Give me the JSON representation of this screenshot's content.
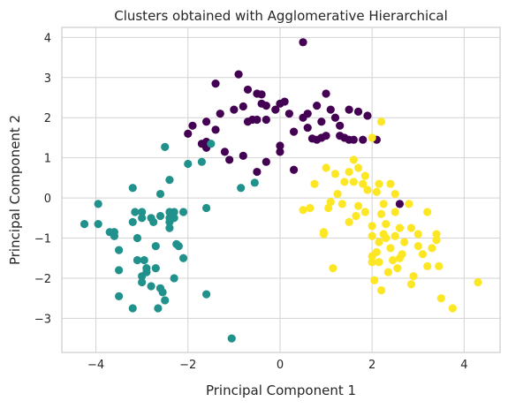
{
  "chart_data": {
    "type": "scatter",
    "title": "Clusters obtained with Agglomerative Hierarchical",
    "xlabel": "Principal Component 1",
    "ylabel": "Principal Component 2",
    "xlim": [
      -4.74,
      4.78
    ],
    "ylim": [
      -3.85,
      4.25
    ],
    "xticks": [
      -4,
      -2,
      0,
      2,
      4
    ],
    "yticks": [
      -3,
      -2,
      -1,
      0,
      1,
      2,
      3,
      4
    ],
    "xtick_labels": [
      "−4",
      "−2",
      "0",
      "2",
      "4"
    ],
    "ytick_labels": [
      "−3",
      "−2",
      "−1",
      "0",
      "1",
      "2",
      "3",
      "4"
    ],
    "grid": true,
    "colors": {
      "0": "#440154",
      "1": "#21918c",
      "2": "#fde725"
    },
    "series": [
      {
        "color": "#440154",
        "points": [
          [
            0.5,
            3.88
          ],
          [
            -0.9,
            3.08
          ],
          [
            -1.4,
            2.85
          ],
          [
            -0.7,
            2.7
          ],
          [
            -0.5,
            2.6
          ],
          [
            -0.4,
            2.58
          ],
          [
            -0.3,
            2.3
          ],
          [
            -0.4,
            2.35
          ],
          [
            -1.0,
            2.2
          ],
          [
            -0.8,
            2.28
          ],
          [
            -0.1,
            2.2
          ],
          [
            0.1,
            2.4
          ],
          [
            0.2,
            2.1
          ],
          [
            0.5,
            2.0
          ],
          [
            1.0,
            2.6
          ],
          [
            0.8,
            2.3
          ],
          [
            1.1,
            2.2
          ],
          [
            0.6,
            2.1
          ],
          [
            -1.3,
            2.1
          ],
          [
            -1.6,
            1.9
          ],
          [
            -1.9,
            1.8
          ],
          [
            -2.0,
            1.6
          ],
          [
            -1.4,
            1.7
          ],
          [
            -0.6,
            1.95
          ],
          [
            -0.5,
            1.95
          ],
          [
            -0.7,
            1.9
          ],
          [
            -0.3,
            1.95
          ],
          [
            0.0,
            2.35
          ],
          [
            0.3,
            1.65
          ],
          [
            0.6,
            1.75
          ],
          [
            0.9,
            1.9
          ],
          [
            1.2,
            2.0
          ],
          [
            1.3,
            1.8
          ],
          [
            1.5,
            2.2
          ],
          [
            1.7,
            2.15
          ],
          [
            1.9,
            2.05
          ],
          [
            1.0,
            1.55
          ],
          [
            1.3,
            1.55
          ],
          [
            1.5,
            1.45
          ],
          [
            1.6,
            1.45
          ],
          [
            1.8,
            1.45
          ],
          [
            0.8,
            1.45
          ],
          [
            0.9,
            1.5
          ],
          [
            0.7,
            1.48
          ],
          [
            2.1,
            1.45
          ],
          [
            -1.6,
            1.4
          ],
          [
            -1.7,
            1.35
          ],
          [
            -1.2,
            1.15
          ],
          [
            -1.1,
            0.95
          ],
          [
            -0.8,
            1.05
          ],
          [
            -0.5,
            0.65
          ],
          [
            -0.3,
            0.9
          ],
          [
            0.0,
            1.15
          ],
          [
            0.0,
            1.3
          ],
          [
            0.3,
            0.7
          ],
          [
            1.4,
            1.5
          ],
          [
            -1.6,
            1.25
          ],
          [
            2.6,
            -0.15
          ]
        ]
      },
      {
        "color": "#21918c",
        "points": [
          [
            -1.05,
            -3.5
          ],
          [
            -3.2,
            -2.75
          ],
          [
            -2.65,
            -2.75
          ],
          [
            -2.5,
            -2.55
          ],
          [
            -3.5,
            -2.45
          ],
          [
            -2.8,
            -2.2
          ],
          [
            -3.0,
            -2.1
          ],
          [
            -2.55,
            -2.35
          ],
          [
            -1.6,
            -2.4
          ],
          [
            -2.6,
            -2.25
          ],
          [
            -2.9,
            -1.85
          ],
          [
            -3.0,
            -1.95
          ],
          [
            -2.9,
            -1.75
          ],
          [
            -2.7,
            -1.75
          ],
          [
            -2.3,
            -2.0
          ],
          [
            -2.1,
            -1.5
          ],
          [
            -3.5,
            -1.8
          ],
          [
            -3.1,
            -1.55
          ],
          [
            -2.95,
            -1.55
          ],
          [
            -3.5,
            -1.3
          ],
          [
            -2.7,
            -1.2
          ],
          [
            -3.1,
            -1.0
          ],
          [
            -2.25,
            -1.15
          ],
          [
            -2.2,
            -1.2
          ],
          [
            -3.6,
            -0.95
          ],
          [
            -3.6,
            -0.85
          ],
          [
            -3.7,
            -0.85
          ],
          [
            -4.25,
            -0.65
          ],
          [
            -3.95,
            -0.65
          ],
          [
            -3.15,
            -0.35
          ],
          [
            -3.0,
            -0.35
          ],
          [
            -3.2,
            -0.6
          ],
          [
            -3.0,
            -0.5
          ],
          [
            -2.8,
            -0.5
          ],
          [
            -2.6,
            -0.45
          ],
          [
            -2.4,
            -0.5
          ],
          [
            -2.3,
            -0.5
          ],
          [
            -2.4,
            -0.35
          ],
          [
            -2.3,
            -0.35
          ],
          [
            -2.1,
            -0.35
          ],
          [
            -2.4,
            -0.6
          ],
          [
            -2.4,
            -0.75
          ],
          [
            -2.75,
            -0.6
          ],
          [
            -3.2,
            0.25
          ],
          [
            -2.6,
            0.1
          ],
          [
            -2.4,
            0.45
          ],
          [
            -1.6,
            -0.25
          ],
          [
            -3.95,
            -0.15
          ],
          [
            -2.0,
            0.85
          ],
          [
            -1.7,
            0.9
          ],
          [
            -2.5,
            1.27
          ],
          [
            -1.5,
            1.35
          ],
          [
            -0.85,
            0.25
          ],
          [
            -0.55,
            0.38
          ]
        ]
      },
      {
        "color": "#fde725",
        "points": [
          [
            2.2,
            1.9
          ],
          [
            2.0,
            1.5
          ],
          [
            1.6,
            0.95
          ],
          [
            1.7,
            0.75
          ],
          [
            1.5,
            0.65
          ],
          [
            1.85,
            0.55
          ],
          [
            1.4,
            0.4
          ],
          [
            1.6,
            0.4
          ],
          [
            1.8,
            0.35
          ],
          [
            2.15,
            0.35
          ],
          [
            2.4,
            0.35
          ],
          [
            1.0,
            0.75
          ],
          [
            1.2,
            0.6
          ],
          [
            0.75,
            0.35
          ],
          [
            1.25,
            0.1
          ],
          [
            1.9,
            0.2
          ],
          [
            2.1,
            0.15
          ],
          [
            2.5,
            0.1
          ],
          [
            1.1,
            -0.1
          ],
          [
            1.05,
            -0.25
          ],
          [
            0.65,
            -0.25
          ],
          [
            0.5,
            -0.3
          ],
          [
            1.35,
            -0.15
          ],
          [
            1.7,
            -0.2
          ],
          [
            1.85,
            -0.35
          ],
          [
            2.25,
            -0.15
          ],
          [
            2.5,
            -0.35
          ],
          [
            2.8,
            -0.15
          ],
          [
            3.2,
            -0.35
          ],
          [
            1.5,
            -0.6
          ],
          [
            2.0,
            -0.7
          ],
          [
            2.3,
            -0.65
          ],
          [
            2.6,
            -0.75
          ],
          [
            2.85,
            -0.75
          ],
          [
            2.5,
            -0.95
          ],
          [
            2.0,
            -0.95
          ],
          [
            2.3,
            -1.0
          ],
          [
            3.0,
            -0.9
          ],
          [
            3.4,
            -0.9
          ],
          [
            2.15,
            -1.1
          ],
          [
            2.7,
            -1.1
          ],
          [
            3.4,
            -1.05
          ],
          [
            2.4,
            -1.25
          ],
          [
            2.1,
            -1.35
          ],
          [
            3.0,
            -1.2
          ],
          [
            3.3,
            -1.25
          ],
          [
            2.0,
            -1.45
          ],
          [
            2.65,
            -1.4
          ],
          [
            3.1,
            -1.4
          ],
          [
            2.0,
            -1.6
          ],
          [
            2.15,
            -1.6
          ],
          [
            2.45,
            -1.55
          ],
          [
            2.6,
            -1.5
          ],
          [
            3.2,
            -1.7
          ],
          [
            1.15,
            -1.75
          ],
          [
            2.55,
            -1.75
          ],
          [
            3.45,
            -1.7
          ],
          [
            2.35,
            -1.85
          ],
          [
            2.9,
            -1.95
          ],
          [
            2.85,
            -2.15
          ],
          [
            2.2,
            -2.3
          ],
          [
            2.05,
            -2.05
          ],
          [
            3.5,
            -2.5
          ],
          [
            3.75,
            -2.75
          ],
          [
            4.3,
            -2.1
          ],
          [
            0.95,
            -0.85
          ],
          [
            0.95,
            -0.9
          ],
          [
            2.25,
            -0.9
          ],
          [
            1.65,
            -0.45
          ],
          [
            2.2,
            -0.4
          ]
        ]
      }
    ]
  }
}
